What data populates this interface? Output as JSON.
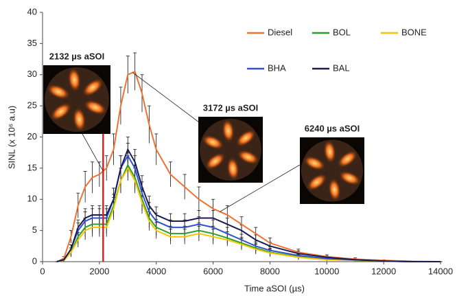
{
  "chart_data": {
    "type": "line",
    "x_label": "Time aSOI (µs)",
    "y_label": "SINL (x 10⁶ a.u)",
    "x": [
      500,
      750,
      1000,
      1250,
      1500,
      1750,
      2000,
      2250,
      2500,
      2750,
      3000,
      3250,
      3500,
      3750,
      4000,
      4500,
      5000,
      5500,
      6000,
      6500,
      7000,
      7500,
      8000,
      9000,
      10000,
      11000,
      12000,
      13000,
      14000
    ],
    "series": [
      {
        "name": "Diesel",
        "color": "#f07030",
        "values": [
          0,
          0.5,
          4,
          9,
          12,
          13.5,
          14,
          15,
          18,
          25,
          30,
          30.5,
          27,
          22,
          18,
          14,
          12,
          10,
          8.5,
          7.5,
          6,
          4.5,
          3,
          1.5,
          0.8,
          0.4,
          0.2,
          0.05,
          0
        ],
        "errors": [
          0,
          0.3,
          1,
          2,
          2.5,
          2.5,
          2,
          2,
          2.5,
          3,
          3,
          3,
          3,
          3,
          2.5,
          2,
          2,
          2,
          1.5,
          1.5,
          1.2,
          1,
          0.8,
          0.5,
          0.3,
          0.2,
          0.1,
          0.05,
          0
        ]
      },
      {
        "name": "BOL",
        "color": "#2a9d2a",
        "values": [
          0,
          0.2,
          1.5,
          4,
          5.5,
          6,
          6,
          6,
          9,
          13,
          15.5,
          13.5,
          10,
          7,
          5.5,
          4.5,
          4.5,
          5,
          4.5,
          3.8,
          3,
          2.2,
          1.5,
          0.8,
          0.4,
          0.2,
          0.1,
          0,
          0
        ],
        "errors": [
          0,
          0.2,
          0.7,
          1.2,
          1.5,
          1.5,
          1.5,
          1.5,
          1.8,
          2,
          2,
          2,
          1.8,
          1.5,
          1.3,
          1.2,
          1.2,
          1.2,
          1.2,
          1,
          0.9,
          0.8,
          0.6,
          0.4,
          0.2,
          0.1,
          0.1,
          0,
          0
        ]
      },
      {
        "name": "BONE",
        "color": "#f5c400",
        "values": [
          0,
          0.2,
          1.5,
          3.5,
          5,
          5.5,
          5.5,
          5.5,
          8.5,
          13,
          15,
          13,
          9.5,
          6.5,
          5,
          4,
          4,
          4.5,
          4,
          3.5,
          2.8,
          2,
          1.4,
          0.7,
          0.3,
          0.2,
          0.1,
          0,
          0
        ],
        "errors": [
          0,
          0.2,
          0.7,
          1.2,
          1.5,
          1.5,
          1.5,
          1.5,
          1.8,
          2,
          2,
          2,
          1.8,
          1.5,
          1.3,
          1.2,
          1.2,
          1.2,
          1.2,
          1,
          0.9,
          0.8,
          0.6,
          0.4,
          0.2,
          0.1,
          0.1,
          0,
          0
        ]
      },
      {
        "name": "BHA",
        "color": "#3050d0",
        "values": [
          0,
          0.3,
          2,
          5,
          6.5,
          7,
          7,
          7,
          10,
          15,
          17,
          15,
          11,
          8,
          6.5,
          5.5,
          5.5,
          6,
          5.5,
          4.5,
          3.5,
          2.5,
          1.8,
          1,
          0.5,
          0.3,
          0.1,
          0,
          0
        ],
        "errors": [
          0,
          0.2,
          0.7,
          1.2,
          1.5,
          1.5,
          1.5,
          1.5,
          1.8,
          2,
          2,
          2,
          1.8,
          1.5,
          1.3,
          1.2,
          1.2,
          1.2,
          1.2,
          1,
          0.9,
          0.8,
          0.6,
          0.4,
          0.2,
          0.1,
          0.1,
          0,
          0
        ]
      },
      {
        "name": "BAL",
        "color": "#1a1a50",
        "values": [
          0,
          0.3,
          2,
          5.5,
          7,
          7.5,
          7.5,
          7.5,
          10,
          15,
          18,
          16,
          12,
          9,
          7.5,
          6.5,
          6.5,
          7,
          7,
          6,
          5,
          3.5,
          2.5,
          1.3,
          0.7,
          0.3,
          0.1,
          0,
          0
        ],
        "errors": [
          0,
          0.2,
          0.7,
          1.2,
          1.5,
          1.5,
          1.5,
          1.5,
          1.8,
          2,
          2,
          2,
          1.8,
          1.5,
          1.3,
          1.2,
          1.2,
          1.2,
          1.2,
          1,
          0.9,
          0.8,
          0.6,
          0.4,
          0.2,
          0.1,
          0.1,
          0,
          0
        ]
      }
    ],
    "xlim": [
      0,
      14000
    ],
    "xticks": [
      0,
      2000,
      4000,
      6000,
      8000,
      10000,
      12000,
      14000
    ],
    "ylim": [
      0,
      40
    ],
    "yticks": [
      0,
      5,
      10,
      15,
      20,
      25,
      30,
      35,
      40
    ],
    "vline": {
      "x": 2132,
      "color": "#e02020"
    },
    "annotations": [
      {
        "text": "2132 µs aSOI",
        "x": 2132
      },
      {
        "text": "3172 µs aSOI",
        "x": 3172
      },
      {
        "text": "6240 µs aSOI",
        "x": 6240
      }
    ]
  }
}
